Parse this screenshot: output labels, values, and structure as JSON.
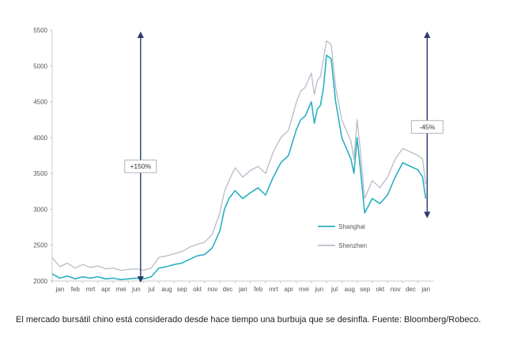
{
  "caption": "El mercado bursátil chino está considerado desde hace tiempo una burbuja que se desinfla. Fuente: Bloomberg/Robeco.",
  "chart_data": {
    "type": "line",
    "title": "",
    "xlabel": "",
    "ylabel": "",
    "ylim": [
      2000,
      5500
    ],
    "yticks": [
      2000,
      2500,
      3000,
      3500,
      4000,
      4500,
      5000,
      5500
    ],
    "xlim": [
      0,
      25
    ],
    "x_tick_labels": [
      "jan",
      "feb",
      "mrt",
      "apr",
      "mei",
      "jun",
      "jul",
      "aug",
      "sep",
      "okt",
      "nov",
      "dec",
      "jan",
      "feb",
      "mrt",
      "apr",
      "mei",
      "jun",
      "jul",
      "aug",
      "sep",
      "okt",
      "nov",
      "dec",
      "jan"
    ],
    "grid": false,
    "legend_position": "right",
    "series": [
      {
        "name": "Shanghai",
        "color": "#2ab0c0",
        "x": [
          0,
          0.5,
          1,
          1.5,
          2,
          2.5,
          3,
          3.5,
          4,
          4.5,
          5,
          5.5,
          6,
          6.5,
          7,
          7.5,
          8,
          8.5,
          9,
          9.5,
          10,
          10.5,
          11,
          11.3,
          11.6,
          12,
          12.5,
          13,
          13.5,
          14,
          14.5,
          15,
          15.5,
          16,
          16.3,
          16.6,
          17,
          17.2,
          17.4,
          17.6,
          17.8,
          18,
          18.3,
          18.6,
          19,
          19.3,
          19.6,
          19.8,
          20,
          20.2,
          20.5,
          21,
          21.5,
          22,
          22.5,
          23,
          23.5,
          24,
          24.3,
          24.5
        ],
        "values": [
          2100,
          2040,
          2070,
          2030,
          2060,
          2040,
          2060,
          2030,
          2040,
          2020,
          2030,
          2040,
          2030,
          2060,
          2180,
          2200,
          2230,
          2250,
          2300,
          2350,
          2370,
          2460,
          2700,
          3000,
          3150,
          3260,
          3150,
          3230,
          3300,
          3200,
          3450,
          3650,
          3750,
          4100,
          4250,
          4300,
          4500,
          4200,
          4400,
          4450,
          4700,
          5150,
          5100,
          4500,
          4000,
          3850,
          3700,
          3500,
          4000,
          3600,
          2950,
          3150,
          3080,
          3200,
          3450,
          3650,
          3600,
          3550,
          3450,
          3150
        ]
      },
      {
        "name": "Shenzhen",
        "color": "#b8bcc8",
        "x": [
          0,
          0.5,
          1,
          1.5,
          2,
          2.5,
          3,
          3.5,
          4,
          4.5,
          5,
          5.5,
          6,
          6.5,
          7,
          7.5,
          8,
          8.5,
          9,
          9.5,
          10,
          10.5,
          11,
          11.3,
          11.6,
          12,
          12.5,
          13,
          13.5,
          14,
          14.5,
          15,
          15.5,
          16,
          16.3,
          16.6,
          17,
          17.2,
          17.4,
          17.6,
          17.8,
          18,
          18.3,
          18.6,
          19,
          19.3,
          19.6,
          19.8,
          20,
          20.2,
          20.5,
          21,
          21.5,
          22,
          22.5,
          23,
          23.5,
          24,
          24.3,
          24.5
        ],
        "values": [
          2330,
          2200,
          2250,
          2180,
          2230,
          2190,
          2210,
          2170,
          2180,
          2150,
          2160,
          2170,
          2150,
          2180,
          2330,
          2350,
          2380,
          2410,
          2470,
          2510,
          2540,
          2650,
          2950,
          3250,
          3400,
          3580,
          3450,
          3540,
          3600,
          3500,
          3800,
          4000,
          4100,
          4480,
          4650,
          4700,
          4900,
          4600,
          4800,
          4850,
          5100,
          5350,
          5300,
          4700,
          4250,
          4100,
          3950,
          3700,
          4250,
          3850,
          3150,
          3400,
          3300,
          3450,
          3700,
          3850,
          3800,
          3750,
          3700,
          3350
        ]
      }
    ],
    "annotations": [
      {
        "label": "+150%",
        "x": 5.8,
        "from": 2000,
        "to": 5500,
        "label_y": 3600
      },
      {
        "label": "-45%",
        "x": 24.6,
        "from": 2900,
        "to": 5500,
        "label_y": 4150
      }
    ]
  }
}
